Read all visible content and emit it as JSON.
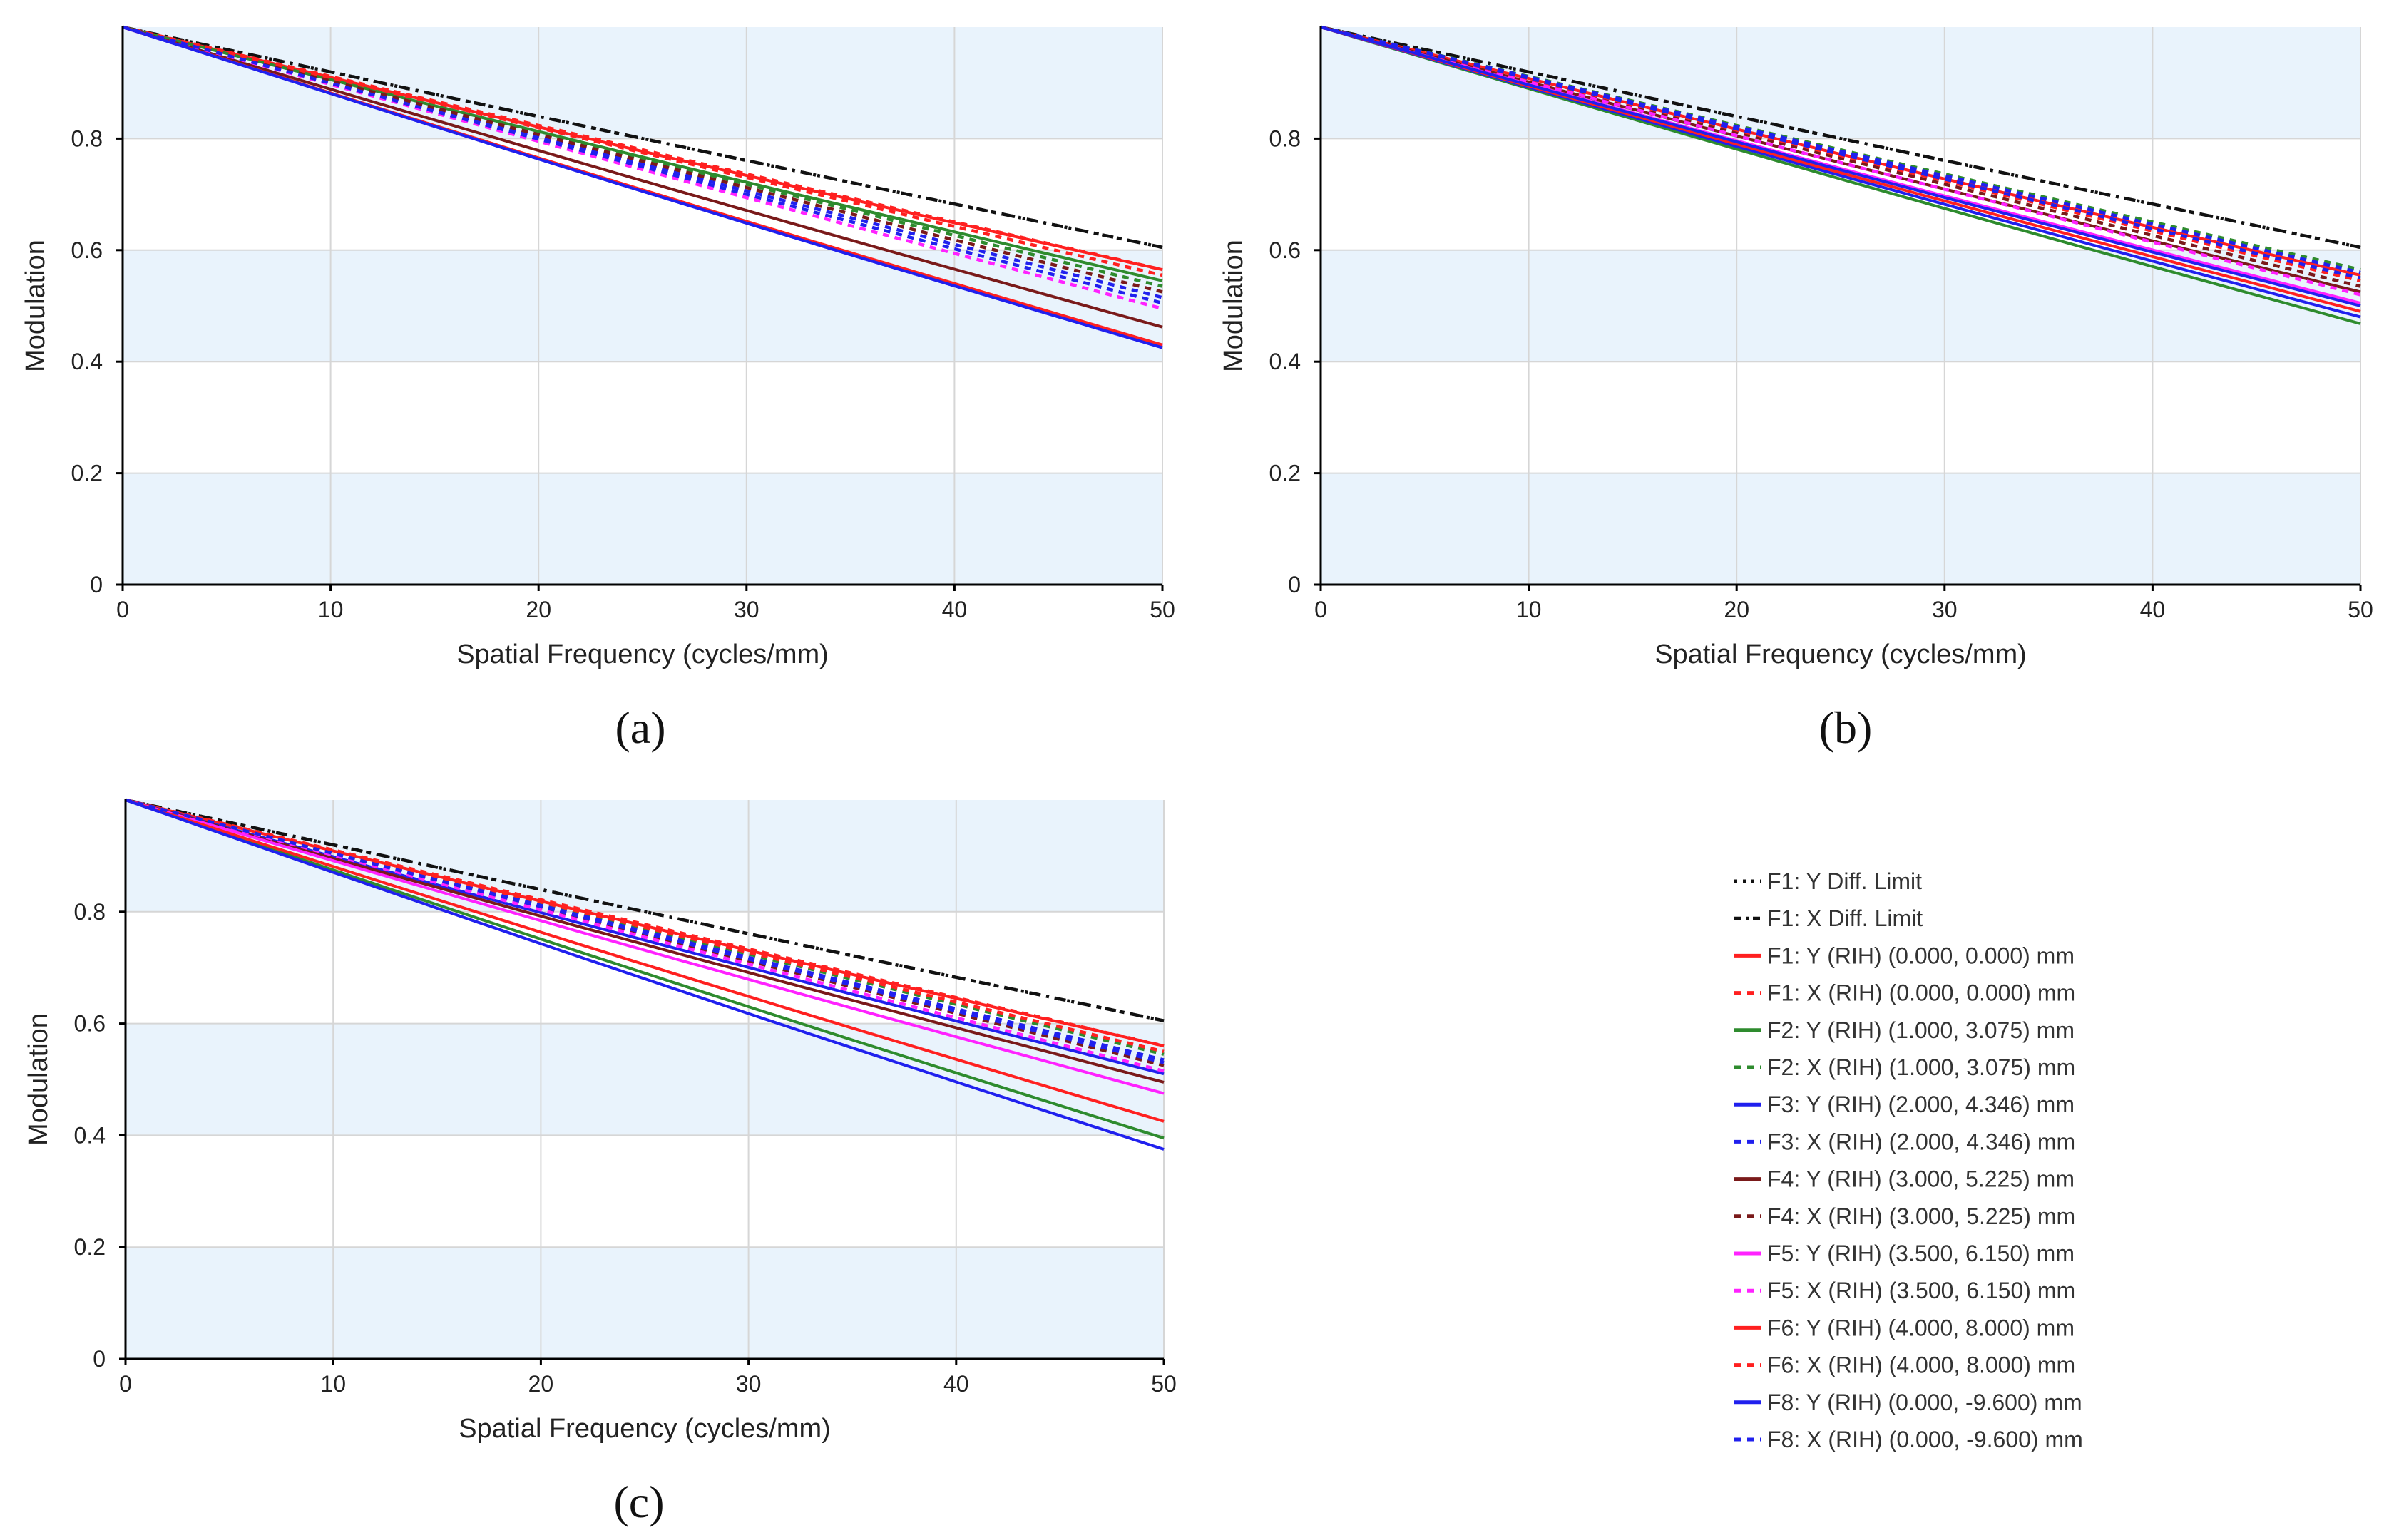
{
  "colors": {
    "band": "#e9f3fc",
    "grid": "#d6d6d6",
    "axis": "#000000",
    "black": "#111111",
    "red": "#ff2020",
    "green": "#2e8b2e",
    "blue": "#2020ee",
    "maroon": "#7a1a1a",
    "magenta": "#ff22ff"
  },
  "legend": {
    "items": [
      {
        "label": "F1: Y Diff. Limit",
        "color": "#111111",
        "dash": "dot"
      },
      {
        "label": "F1: X Diff. Limit",
        "color": "#111111",
        "dash": "dashdot"
      },
      {
        "label": "F1: Y (RIH) (0.000, 0.000) mm",
        "color": "#ff2020",
        "dash": "solid"
      },
      {
        "label": "F1: X (RIH) (0.000, 0.000) mm",
        "color": "#ff2020",
        "dash": "dash"
      },
      {
        "label": "F2: Y (RIH) (1.000, 3.075) mm",
        "color": "#2e8b2e",
        "dash": "solid"
      },
      {
        "label": "F2: X (RIH) (1.000, 3.075) mm",
        "color": "#2e8b2e",
        "dash": "dash"
      },
      {
        "label": "F3: Y (RIH) (2.000, 4.346) mm",
        "color": "#2020ee",
        "dash": "solid"
      },
      {
        "label": "F3: X (RIH) (2.000, 4.346) mm",
        "color": "#2020ee",
        "dash": "dash"
      },
      {
        "label": "F4: Y (RIH) (3.000, 5.225) mm",
        "color": "#7a1a1a",
        "dash": "solid"
      },
      {
        "label": "F4: X (RIH) (3.000, 5.225) mm",
        "color": "#7a1a1a",
        "dash": "dash"
      },
      {
        "label": "F5: Y (RIH) (3.500, 6.150) mm",
        "color": "#ff22ff",
        "dash": "solid"
      },
      {
        "label": "F5: X (RIH) (3.500, 6.150) mm",
        "color": "#ff22ff",
        "dash": "dash"
      },
      {
        "label": "F6: Y (RIH) (4.000, 8.000) mm",
        "color": "#ff2020",
        "dash": "solid"
      },
      {
        "label": "F6: X (RIH) (4.000, 8.000) mm",
        "color": "#ff2020",
        "dash": "dash"
      },
      {
        "label": "F8: Y (RIH) (0.000, -9.600) mm",
        "color": "#2020ee",
        "dash": "solid"
      },
      {
        "label": "F8: X (RIH) (0.000, -9.600) mm",
        "color": "#2020ee",
        "dash": "dash"
      }
    ]
  },
  "chart_data": [
    {
      "type": "line",
      "panel": "a",
      "caption": "(a)",
      "xlabel": "Spatial Frequency (cycles/mm)",
      "ylabel": "Modulation",
      "xlim": [
        0,
        50
      ],
      "ylim": [
        0,
        1
      ],
      "xticks": [
        "0",
        "10",
        "20",
        "30",
        "40",
        "50"
      ],
      "yticks": [
        "0",
        "0.2",
        "0.4",
        "0.6",
        "0.8"
      ],
      "ytick_values": [
        0,
        0.2,
        0.4,
        0.6,
        0.8
      ],
      "grid": true,
      "series": [
        {
          "name": "F1: Y Diff. Limit",
          "color": "#111111",
          "dash": "dot",
          "end": 0.605
        },
        {
          "name": "F1: X Diff. Limit",
          "color": "#111111",
          "dash": "dashdot",
          "end": 0.605
        },
        {
          "name": "F1: Y (RIH) (0.000, 0.000) mm",
          "color": "#ff2020",
          "dash": "solid",
          "end": 0.565
        },
        {
          "name": "F1: X (RIH) (0.000, 0.000) mm",
          "color": "#ff2020",
          "dash": "dash",
          "end": 0.565
        },
        {
          "name": "F2: Y (RIH) (1.000, 3.075) mm",
          "color": "#2e8b2e",
          "dash": "solid",
          "end": 0.545
        },
        {
          "name": "F2: X (RIH) (1.000, 3.075) mm",
          "color": "#2e8b2e",
          "dash": "dash",
          "end": 0.535
        },
        {
          "name": "F3: Y (RIH) (2.000, 4.346) mm",
          "color": "#2020ee",
          "dash": "solid",
          "end": 0.425
        },
        {
          "name": "F3: X (RIH) (2.000, 4.346) mm",
          "color": "#2020ee",
          "dash": "dash",
          "end": 0.515
        },
        {
          "name": "F4: Y (RIH) (3.000, 5.225) mm",
          "color": "#7a1a1a",
          "dash": "solid",
          "end": 0.462
        },
        {
          "name": "F4: X (RIH) (3.000, 5.225) mm",
          "color": "#7a1a1a",
          "dash": "dash",
          "end": 0.525
        },
        {
          "name": "F5: Y (RIH) (3.500, 6.150) mm",
          "color": "#ff22ff",
          "dash": "solid",
          "end": 0.428
        },
        {
          "name": "F5: X (RIH) (3.500, 6.150) mm",
          "color": "#ff22ff",
          "dash": "dash",
          "end": 0.495
        },
        {
          "name": "F6: Y (RIH) (4.000, 8.000) mm",
          "color": "#ff2020",
          "dash": "solid",
          "end": 0.43
        },
        {
          "name": "F6: X (RIH) (4.000, 8.000) mm",
          "color": "#ff2020",
          "dash": "dash",
          "end": 0.555
        },
        {
          "name": "F8: Y (RIH) (0.000, -9.600) mm",
          "color": "#2020ee",
          "dash": "solid",
          "end": 0.425
        },
        {
          "name": "F8: X (RIH) (0.000, -9.600) mm",
          "color": "#2020ee",
          "dash": "dash",
          "end": 0.505
        }
      ]
    },
    {
      "type": "line",
      "panel": "b",
      "caption": "(b)",
      "xlabel": "Spatial Frequency (cycles/mm)",
      "ylabel": "Modulation",
      "xlim": [
        0,
        50
      ],
      "ylim": [
        0,
        1
      ],
      "xticks": [
        "0",
        "10",
        "20",
        "30",
        "40",
        "50"
      ],
      "yticks": [
        "0",
        "0.2",
        "0.4",
        "0.6",
        "0.8"
      ],
      "ytick_values": [
        0,
        0.2,
        0.4,
        0.6,
        0.8
      ],
      "grid": true,
      "series": [
        {
          "name": "F1: Y Diff. Limit",
          "color": "#111111",
          "dash": "dot",
          "end": 0.605
        },
        {
          "name": "F1: X Diff. Limit",
          "color": "#111111",
          "dash": "dashdot",
          "end": 0.605
        },
        {
          "name": "F1: Y (RIH) (0.000, 0.000) mm",
          "color": "#ff2020",
          "dash": "solid",
          "end": 0.555
        },
        {
          "name": "F1: X (RIH) (0.000, 0.000) mm",
          "color": "#ff2020",
          "dash": "dash",
          "end": 0.555
        },
        {
          "name": "F2: Y (RIH) (1.000, 3.075) mm",
          "color": "#2e8b2e",
          "dash": "solid",
          "end": 0.468
        },
        {
          "name": "F2: X (RIH) (1.000, 3.075) mm",
          "color": "#2e8b2e",
          "dash": "dash",
          "end": 0.565
        },
        {
          "name": "F3: Y (RIH) (2.000, 4.346) mm",
          "color": "#2020ee",
          "dash": "solid",
          "end": 0.48
        },
        {
          "name": "F3: X (RIH) (2.000, 4.346) mm",
          "color": "#2020ee",
          "dash": "dash",
          "end": 0.56
        },
        {
          "name": "F4: Y (RIH) (3.000, 5.225) mm",
          "color": "#7a1a1a",
          "dash": "solid",
          "end": 0.525
        },
        {
          "name": "F4: X (RIH) (3.000, 5.225) mm",
          "color": "#7a1a1a",
          "dash": "dash",
          "end": 0.535
        },
        {
          "name": "F5: Y (RIH) (3.500, 6.150) mm",
          "color": "#ff22ff",
          "dash": "solid",
          "end": 0.505
        },
        {
          "name": "F5: X (RIH) (3.500, 6.150) mm",
          "color": "#ff22ff",
          "dash": "dash",
          "end": 0.52
        },
        {
          "name": "F6: Y (RIH) (4.000, 8.000) mm",
          "color": "#ff2020",
          "dash": "solid",
          "end": 0.49
        },
        {
          "name": "F6: X (RIH) (4.000, 8.000) mm",
          "color": "#ff2020",
          "dash": "dash",
          "end": 0.545
        },
        {
          "name": "F8: Y (RIH) (0.000, -9.600) mm",
          "color": "#2020ee",
          "dash": "solid",
          "end": 0.5
        },
        {
          "name": "F8: X (RIH) (0.000, -9.600) mm",
          "color": "#2020ee",
          "dash": "dash",
          "end": 0.55
        }
      ]
    },
    {
      "type": "line",
      "panel": "c",
      "caption": "(c)",
      "xlabel": "Spatial Frequency (cycles/mm)",
      "ylabel": "Modulation",
      "xlim": [
        0,
        50
      ],
      "ylim": [
        0,
        1
      ],
      "xticks": [
        "0",
        "10",
        "20",
        "30",
        "40",
        "50"
      ],
      "yticks": [
        "0",
        "0.2",
        "0.4",
        "0.6",
        "0.8"
      ],
      "ytick_values": [
        0,
        0.2,
        0.4,
        0.6,
        0.8
      ],
      "grid": true,
      "series": [
        {
          "name": "F1: Y Diff. Limit",
          "color": "#111111",
          "dash": "dot",
          "end": 0.605
        },
        {
          "name": "F1: X Diff. Limit",
          "color": "#111111",
          "dash": "dashdot",
          "end": 0.605
        },
        {
          "name": "F1: Y (RIH) (0.000, 0.000) mm",
          "color": "#ff2020",
          "dash": "solid",
          "end": 0.56
        },
        {
          "name": "F1: X (RIH) (0.000, 0.000) mm",
          "color": "#ff2020",
          "dash": "dash",
          "end": 0.56
        },
        {
          "name": "F2: Y (RIH) (1.000, 3.075) mm",
          "color": "#2e8b2e",
          "dash": "solid",
          "end": 0.395
        },
        {
          "name": "F2: X (RIH) (1.000, 3.075) mm",
          "color": "#2e8b2e",
          "dash": "dash",
          "end": 0.545
        },
        {
          "name": "F3: Y (RIH) (2.000, 4.346) mm",
          "color": "#2020ee",
          "dash": "solid",
          "end": 0.51
        },
        {
          "name": "F3: X (RIH) (2.000, 4.346) mm",
          "color": "#2020ee",
          "dash": "dash",
          "end": 0.535
        },
        {
          "name": "F4: Y (RIH) (3.000, 5.225) mm",
          "color": "#7a1a1a",
          "dash": "solid",
          "end": 0.495
        },
        {
          "name": "F4: X (RIH) (3.000, 5.225) mm",
          "color": "#7a1a1a",
          "dash": "dash",
          "end": 0.525
        },
        {
          "name": "F5: Y (RIH) (3.500, 6.150) mm",
          "color": "#ff22ff",
          "dash": "solid",
          "end": 0.475
        },
        {
          "name": "F5: X (RIH) (3.500, 6.150) mm",
          "color": "#ff22ff",
          "dash": "dash",
          "end": 0.515
        },
        {
          "name": "F6: Y (RIH) (4.000, 8.000) mm",
          "color": "#ff2020",
          "dash": "solid",
          "end": 0.425
        },
        {
          "name": "F6: X (RIH) (4.000, 8.000) mm",
          "color": "#ff2020",
          "dash": "dash",
          "end": 0.55
        },
        {
          "name": "F8: Y (RIH) (0.000, -9.600) mm",
          "color": "#2020ee",
          "dash": "solid",
          "end": 0.375
        },
        {
          "name": "F8: X (RIH) (0.000, -9.600) mm",
          "color": "#2020ee",
          "dash": "dash",
          "end": 0.53
        }
      ]
    }
  ]
}
